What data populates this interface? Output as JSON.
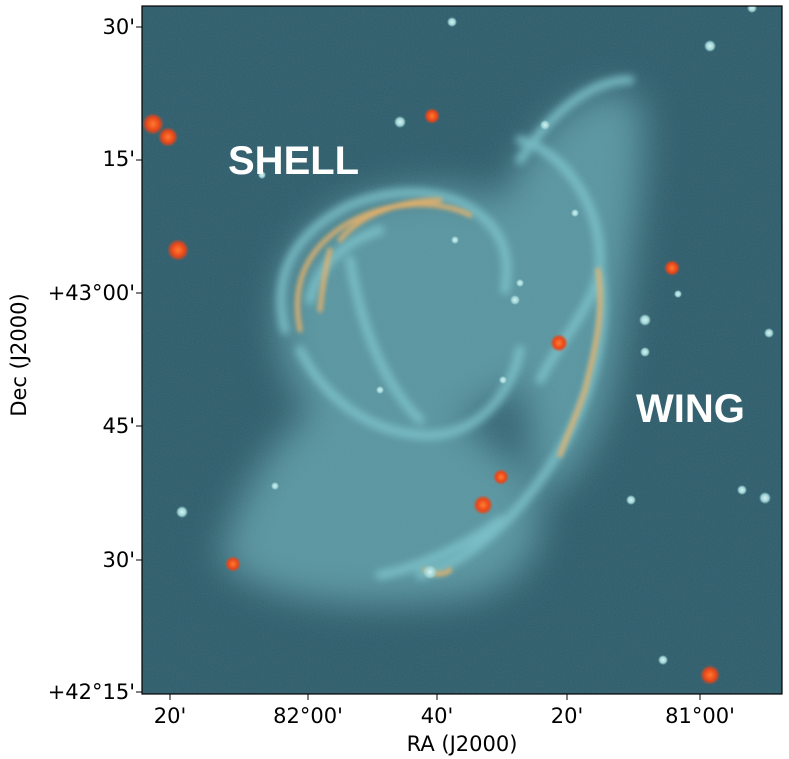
{
  "image": {
    "annotations": {
      "shell": "SHELL",
      "wing": "WING"
    },
    "x_axis": {
      "label": "RA (J2000)",
      "tick_labels": [
        "20'",
        "82°00'",
        "40'",
        "20'",
        "81°00'"
      ]
    },
    "y_axis": {
      "label": "Dec (J2000)",
      "tick_labels": [
        "30'",
        "15'",
        "+43°00'",
        "45'",
        "30'",
        "+42°15'"
      ]
    },
    "colors": {
      "background": "#2c5a68",
      "nebula": "#7fc4cc",
      "bright_filament": "#e8b26a",
      "stars": "#ef5a24"
    }
  }
}
